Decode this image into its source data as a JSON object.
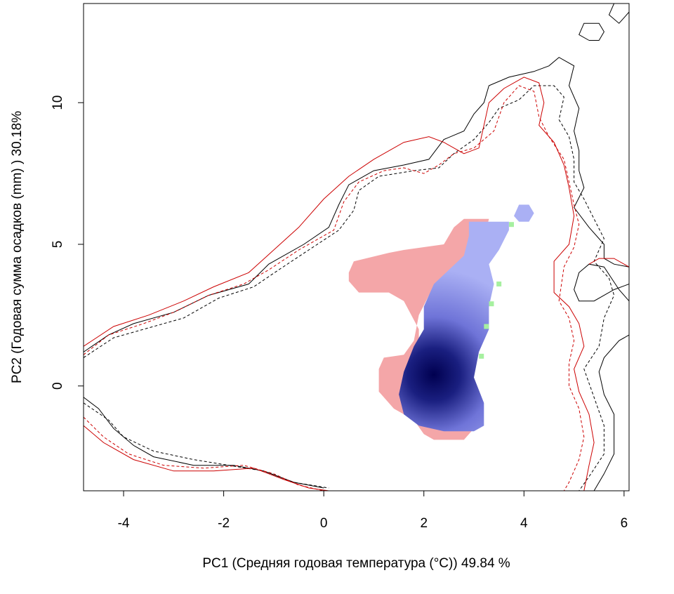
{
  "chart_data": {
    "type": "heatmap",
    "title": "",
    "xlabel": "PC1 (Средняя годовая температура (°C)) 49.84 %",
    "ylabel": "PC2 (Годовая сумма осадков  (mm) ) 30.18%",
    "xlim": [
      -4.8,
      6.1
    ],
    "ylim": [
      -3.7,
      13.5
    ],
    "xticks": [
      -4,
      -2,
      0,
      2,
      4,
      6
    ],
    "yticks": [
      0,
      5,
      10
    ],
    "xtick_labels": [
      "-4",
      "-2",
      "0",
      "2",
      "4",
      "6"
    ],
    "ytick_labels": [
      "0",
      "5",
      "10"
    ],
    "grid": false,
    "colors": {
      "pink_region": "#f4a6a8",
      "blue_low": "#aab0f4",
      "blue_high": "#000050",
      "green_cells": "#a6f0a0",
      "contour_black": "#000000",
      "contour_red": "#cc0000"
    },
    "density_peak": {
      "x": 2.2,
      "y": 0.4
    },
    "pink_region": [
      [
        0.5,
        4.0
      ],
      [
        0.6,
        4.4
      ],
      [
        1.3,
        4.7
      ],
      [
        1.6,
        4.8
      ],
      [
        2.4,
        5.0
      ],
      [
        2.6,
        5.6
      ],
      [
        2.8,
        5.9
      ],
      [
        3.3,
        5.9
      ],
      [
        3.2,
        5.2
      ],
      [
        3.0,
        4.5
      ],
      [
        2.5,
        3.8
      ],
      [
        2.1,
        3.2
      ],
      [
        1.9,
        2.5
      ],
      [
        1.8,
        1.6
      ],
      [
        1.6,
        1.1
      ],
      [
        1.2,
        1.0
      ],
      [
        1.1,
        0.6
      ],
      [
        1.1,
        -0.2
      ],
      [
        1.4,
        -0.8
      ],
      [
        1.8,
        -1.2
      ],
      [
        2.0,
        -1.7
      ],
      [
        2.2,
        -1.9
      ],
      [
        2.8,
        -1.9
      ],
      [
        3.0,
        -1.5
      ],
      [
        2.8,
        -1.0
      ],
      [
        2.3,
        0.0
      ],
      [
        1.9,
        1.0
      ],
      [
        1.9,
        2.0
      ],
      [
        1.6,
        3.0
      ],
      [
        1.3,
        3.3
      ],
      [
        0.7,
        3.3
      ],
      [
        0.5,
        3.7
      ]
    ],
    "blue_region": [
      [
        2.9,
        5.8
      ],
      [
        3.7,
        5.8
      ],
      [
        3.7,
        5.5
      ],
      [
        3.5,
        4.8
      ],
      [
        3.3,
        4.3
      ],
      [
        3.4,
        3.6
      ],
      [
        3.3,
        2.8
      ],
      [
        3.3,
        2.0
      ],
      [
        3.1,
        1.2
      ],
      [
        3.0,
        0.3
      ],
      [
        3.2,
        -0.6
      ],
      [
        3.2,
        -1.4
      ],
      [
        3.0,
        -1.6
      ],
      [
        2.4,
        -1.6
      ],
      [
        1.9,
        -1.4
      ],
      [
        1.6,
        -1.0
      ],
      [
        1.5,
        -0.3
      ],
      [
        1.6,
        0.5
      ],
      [
        1.8,
        1.4
      ],
      [
        2.0,
        2.0
      ],
      [
        2.0,
        2.8
      ],
      [
        2.2,
        3.6
      ],
      [
        2.5,
        4.1
      ],
      [
        2.8,
        4.6
      ],
      [
        2.9,
        5.3
      ]
    ],
    "blue_island": [
      [
        3.9,
        6.4
      ],
      [
        4.1,
        6.4
      ],
      [
        4.2,
        6.1
      ],
      [
        4.1,
        5.8
      ],
      [
        3.9,
        5.8
      ],
      [
        3.8,
        6.0
      ]
    ],
    "green_cells": [
      [
        3.75,
        5.7
      ],
      [
        3.5,
        3.6
      ],
      [
        3.35,
        2.9
      ],
      [
        3.25,
        2.1
      ],
      [
        3.15,
        1.05
      ]
    ],
    "contours": [
      {
        "color": "#000000",
        "dash": false,
        "points": [
          [
            -4.8,
            1.2
          ],
          [
            -4.3,
            1.8
          ],
          [
            -3.8,
            2.2
          ],
          [
            -3.0,
            2.6
          ],
          [
            -2.3,
            3.2
          ],
          [
            -1.5,
            3.6
          ],
          [
            -1.1,
            4.3
          ],
          [
            -0.4,
            5.0
          ],
          [
            0.1,
            5.6
          ],
          [
            0.3,
            6.4
          ],
          [
            0.5,
            7.1
          ],
          [
            1.0,
            7.6
          ],
          [
            1.6,
            7.8
          ],
          [
            2.1,
            8.0
          ],
          [
            2.4,
            8.7
          ],
          [
            2.8,
            9.0
          ],
          [
            3.0,
            9.6
          ],
          [
            3.2,
            10.0
          ],
          [
            3.3,
            10.6
          ],
          [
            3.7,
            10.9
          ],
          [
            4.2,
            11.1
          ],
          [
            4.5,
            11.3
          ],
          [
            4.7,
            11.6
          ],
          [
            5.0,
            11.3
          ],
          [
            4.9,
            10.6
          ],
          [
            5.1,
            9.8
          ],
          [
            5.0,
            9.0
          ],
          [
            5.1,
            8.3
          ],
          [
            5.1,
            7.6
          ],
          [
            5.2,
            7.0
          ],
          [
            5.0,
            6.3
          ],
          [
            5.3,
            5.6
          ],
          [
            5.6,
            5.0
          ],
          [
            5.6,
            4.5
          ],
          [
            5.8,
            4.3
          ],
          [
            6.1,
            4.2
          ]
        ]
      },
      {
        "color": "#000000",
        "dash": false,
        "points": [
          [
            -4.8,
            -0.4
          ],
          [
            -4.5,
            -0.8
          ],
          [
            -4.2,
            -1.5
          ],
          [
            -3.8,
            -2.1
          ],
          [
            -3.4,
            -2.5
          ],
          [
            -2.6,
            -2.8
          ],
          [
            -1.8,
            -2.8
          ],
          [
            -1.2,
            -3.0
          ],
          [
            -0.6,
            -3.4
          ],
          [
            0.0,
            -3.6
          ]
        ]
      },
      {
        "color": "#000000",
        "dash": false,
        "points": [
          [
            6.1,
            1.8
          ],
          [
            5.9,
            1.6
          ],
          [
            5.6,
            1.0
          ],
          [
            5.5,
            0.5
          ],
          [
            5.6,
            -0.3
          ],
          [
            5.8,
            -1.0
          ],
          [
            5.8,
            -1.6
          ],
          [
            5.8,
            -2.4
          ],
          [
            5.6,
            -3.1
          ],
          [
            5.4,
            -3.7
          ]
        ]
      },
      {
        "color": "#000000",
        "dash": false,
        "points": [
          [
            6.1,
            3.0
          ],
          [
            5.9,
            3.4
          ],
          [
            5.6,
            4.2
          ],
          [
            5.3,
            4.3
          ],
          [
            5.1,
            4.0
          ],
          [
            5.0,
            3.4
          ],
          [
            5.1,
            3.0
          ],
          [
            5.4,
            3.0
          ],
          [
            5.6,
            3.2
          ],
          [
            5.8,
            3.4
          ],
          [
            6.1,
            3.6
          ]
        ]
      },
      {
        "color": "#000000",
        "dash": false,
        "points": [
          [
            5.3,
            12.2
          ],
          [
            5.1,
            12.4
          ],
          [
            5.2,
            12.8
          ],
          [
            5.5,
            12.8
          ],
          [
            5.6,
            12.5
          ],
          [
            5.5,
            12.2
          ],
          [
            5.3,
            12.2
          ]
        ]
      },
      {
        "color": "#000000",
        "dash": false,
        "points": [
          [
            5.8,
            13.5
          ],
          [
            5.7,
            13.1
          ],
          [
            5.9,
            12.8
          ],
          [
            6.0,
            13.0
          ],
          [
            6.1,
            13.2
          ]
        ]
      },
      {
        "color": "#000000",
        "dash": true,
        "points": [
          [
            -4.8,
            1.0
          ],
          [
            -4.2,
            1.7
          ],
          [
            -3.6,
            2.0
          ],
          [
            -2.8,
            2.4
          ],
          [
            -2.1,
            3.1
          ],
          [
            -1.4,
            3.5
          ],
          [
            -0.9,
            4.1
          ],
          [
            -0.3,
            4.8
          ],
          [
            0.3,
            5.5
          ],
          [
            0.6,
            6.2
          ],
          [
            0.7,
            6.9
          ],
          [
            1.1,
            7.4
          ],
          [
            1.8,
            7.6
          ],
          [
            2.3,
            7.7
          ],
          [
            2.6,
            8.2
          ],
          [
            3.0,
            8.7
          ],
          [
            3.3,
            9.3
          ],
          [
            3.5,
            9.8
          ],
          [
            3.9,
            10.1
          ],
          [
            4.2,
            10.6
          ],
          [
            4.6,
            10.6
          ],
          [
            4.8,
            10.2
          ],
          [
            4.7,
            9.4
          ],
          [
            4.9,
            8.8
          ],
          [
            5.0,
            8.0
          ],
          [
            5.0,
            7.2
          ],
          [
            5.2,
            6.6
          ],
          [
            5.4,
            5.9
          ],
          [
            5.6,
            5.2
          ],
          [
            5.4,
            4.4
          ],
          [
            5.7,
            3.8
          ],
          [
            5.8,
            3.2
          ],
          [
            5.6,
            2.4
          ],
          [
            5.5,
            1.4
          ],
          [
            5.2,
            0.6
          ],
          [
            5.4,
            -0.4
          ],
          [
            5.6,
            -1.4
          ],
          [
            5.6,
            -2.4
          ],
          [
            5.3,
            -3.2
          ],
          [
            5.1,
            -3.7
          ]
        ]
      },
      {
        "color": "#000000",
        "dash": true,
        "points": [
          [
            -4.8,
            -0.6
          ],
          [
            -4.3,
            -1.2
          ],
          [
            -4.0,
            -1.8
          ],
          [
            -3.4,
            -2.3
          ],
          [
            -2.6,
            -2.6
          ],
          [
            -1.9,
            -2.8
          ],
          [
            -1.2,
            -3.0
          ],
          [
            -0.6,
            -3.4
          ],
          [
            0.1,
            -3.6
          ]
        ]
      },
      {
        "color": "#cc0000",
        "dash": false,
        "points": [
          [
            -4.8,
            1.4
          ],
          [
            -4.2,
            2.1
          ],
          [
            -3.5,
            2.5
          ],
          [
            -2.8,
            3.0
          ],
          [
            -2.2,
            3.5
          ],
          [
            -1.5,
            4.0
          ],
          [
            -1.0,
            4.8
          ],
          [
            -0.5,
            5.6
          ],
          [
            0.0,
            6.6
          ],
          [
            0.5,
            7.4
          ],
          [
            1.0,
            8.0
          ],
          [
            1.6,
            8.6
          ],
          [
            2.1,
            8.8
          ],
          [
            2.4,
            8.6
          ],
          [
            2.8,
            8.2
          ],
          [
            3.1,
            8.4
          ],
          [
            3.2,
            9.2
          ],
          [
            3.3,
            10.0
          ],
          [
            3.6,
            10.5
          ],
          [
            4.0,
            10.9
          ],
          [
            4.3,
            10.7
          ],
          [
            4.4,
            10.0
          ],
          [
            4.3,
            9.2
          ],
          [
            4.6,
            8.6
          ],
          [
            4.8,
            7.8
          ],
          [
            4.9,
            7.0
          ],
          [
            5.0,
            6.0
          ],
          [
            4.9,
            5.0
          ],
          [
            4.6,
            4.4
          ],
          [
            4.6,
            3.3
          ],
          [
            4.9,
            2.8
          ],
          [
            5.1,
            2.2
          ],
          [
            5.2,
            1.4
          ],
          [
            5.0,
            0.6
          ],
          [
            5.1,
            -0.2
          ],
          [
            5.3,
            -1.0
          ],
          [
            5.4,
            -2.0
          ],
          [
            5.3,
            -2.8
          ],
          [
            5.2,
            -3.7
          ]
        ]
      },
      {
        "color": "#cc0000",
        "dash": false,
        "points": [
          [
            -4.8,
            -1.4
          ],
          [
            -4.4,
            -2.0
          ],
          [
            -3.8,
            -2.6
          ],
          [
            -3.0,
            -3.0
          ],
          [
            -2.2,
            -3.0
          ],
          [
            -1.4,
            -2.9
          ],
          [
            -0.8,
            -3.3
          ],
          [
            -0.3,
            -3.6
          ],
          [
            0.1,
            -3.7
          ]
        ]
      },
      {
        "color": "#cc0000",
        "dash": true,
        "points": [
          [
            -4.8,
            1.1
          ],
          [
            -4.3,
            1.8
          ],
          [
            -3.6,
            2.2
          ],
          [
            -3.0,
            2.6
          ],
          [
            -2.3,
            3.2
          ],
          [
            -1.6,
            3.6
          ],
          [
            -1.1,
            4.1
          ],
          [
            -0.5,
            4.8
          ],
          [
            0.2,
            5.5
          ],
          [
            0.4,
            6.5
          ],
          [
            0.7,
            7.2
          ],
          [
            1.2,
            7.6
          ],
          [
            1.6,
            7.7
          ],
          [
            2.0,
            7.5
          ],
          [
            2.3,
            7.8
          ],
          [
            2.6,
            8.2
          ],
          [
            3.0,
            8.4
          ],
          [
            3.4,
            9.0
          ],
          [
            3.6,
            10.0
          ],
          [
            3.9,
            10.6
          ],
          [
            4.2,
            10.4
          ],
          [
            4.3,
            9.5
          ],
          [
            4.5,
            8.8
          ],
          [
            4.8,
            8.0
          ],
          [
            4.9,
            7.2
          ],
          [
            5.0,
            6.4
          ],
          [
            5.1,
            5.7
          ],
          [
            5.0,
            4.9
          ],
          [
            4.8,
            4.2
          ],
          [
            4.7,
            3.0
          ],
          [
            4.9,
            2.4
          ],
          [
            5.0,
            1.6
          ],
          [
            4.9,
            0.8
          ],
          [
            4.9,
            0.0
          ],
          [
            5.1,
            -0.8
          ],
          [
            5.2,
            -1.8
          ],
          [
            5.1,
            -2.6
          ],
          [
            4.9,
            -3.4
          ],
          [
            4.8,
            -3.7
          ]
        ]
      },
      {
        "color": "#cc0000",
        "dash": true,
        "points": [
          [
            -4.8,
            -1.1
          ],
          [
            -4.4,
            -1.8
          ],
          [
            -3.9,
            -2.4
          ],
          [
            -3.2,
            -2.8
          ],
          [
            -2.4,
            -2.9
          ],
          [
            -1.6,
            -2.8
          ],
          [
            -1.0,
            -3.1
          ],
          [
            -0.5,
            -3.5
          ],
          [
            0.0,
            -3.7
          ]
        ]
      },
      {
        "color": "#cc0000",
        "dash": false,
        "points": [
          [
            6.1,
            4.2
          ],
          [
            5.8,
            4.5
          ],
          [
            5.5,
            4.5
          ],
          [
            5.3,
            4.3
          ]
        ]
      }
    ]
  }
}
